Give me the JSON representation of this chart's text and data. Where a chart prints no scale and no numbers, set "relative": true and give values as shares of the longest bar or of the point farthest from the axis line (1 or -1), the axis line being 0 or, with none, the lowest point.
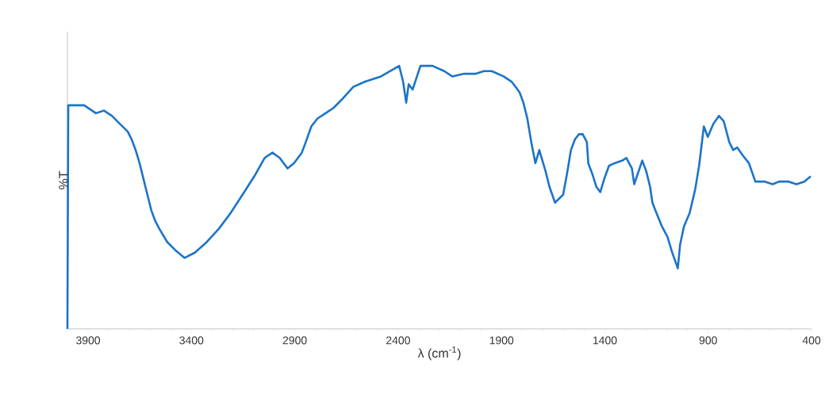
{
  "chart_data": {
    "type": "line",
    "relative": true,
    "xlabel": "λ (cm$^{-1}$)",
    "ylabel": "%T",
    "xlim": [
      4000,
      400
    ],
    "xticks": [
      3900,
      3400,
      2900,
      2400,
      1900,
      1400,
      900,
      400
    ],
    "series": [
      {
        "color": "#1b74c8",
        "x": [
          4000,
          3996,
          3919,
          3862,
          3823,
          3785,
          3747,
          3708,
          3689,
          3670,
          3651,
          3632,
          3613,
          3594,
          3575,
          3555,
          3517,
          3479,
          3433,
          3383,
          3326,
          3268,
          3211,
          3153,
          3096,
          3046,
          3008,
          2973,
          2935,
          2904,
          2866,
          2847,
          2820,
          2790,
          2751,
          2713,
          2675,
          2617,
          2560,
          2483,
          2395,
          2376,
          2361,
          2349,
          2330,
          2292,
          2234,
          2177,
          2138,
          2081,
          2024,
          1985,
          1947,
          1890,
          1851,
          1813,
          1794,
          1775,
          1756,
          1736,
          1717,
          1706,
          1687,
          1668,
          1641,
          1602,
          1583,
          1564,
          1545,
          1526,
          1507,
          1487,
          1480,
          1461,
          1441,
          1422,
          1403,
          1380,
          1353,
          1315,
          1296,
          1269,
          1258,
          1219,
          1200,
          1181,
          1170,
          1150,
          1124,
          1097,
          1074,
          1047,
          1036,
          1017,
          990,
          963,
          944,
          921,
          902,
          875,
          848,
          825,
          798,
          779,
          760,
          733,
          703,
          672,
          626,
          588,
          557,
          511,
          473,
          435,
          404
        ],
        "values": [
          0,
          0.85,
          0.85,
          0.82,
          0.83,
          0.81,
          0.78,
          0.75,
          0.72,
          0.68,
          0.63,
          0.57,
          0.51,
          0.45,
          0.41,
          0.38,
          0.33,
          0.3,
          0.27,
          0.29,
          0.33,
          0.38,
          0.44,
          0.51,
          0.58,
          0.65,
          0.67,
          0.65,
          0.61,
          0.63,
          0.67,
          0.71,
          0.77,
          0.8,
          0.82,
          0.84,
          0.87,
          0.92,
          0.94,
          0.96,
          1.0,
          0.94,
          0.86,
          0.93,
          0.91,
          1.0,
          1.0,
          0.98,
          0.96,
          0.97,
          0.97,
          0.98,
          0.98,
          0.96,
          0.94,
          0.9,
          0.86,
          0.8,
          0.71,
          0.63,
          0.68,
          0.65,
          0.6,
          0.54,
          0.48,
          0.51,
          0.59,
          0.68,
          0.72,
          0.74,
          0.74,
          0.71,
          0.63,
          0.59,
          0.54,
          0.52,
          0.57,
          0.62,
          0.63,
          0.64,
          0.65,
          0.61,
          0.55,
          0.64,
          0.6,
          0.54,
          0.48,
          0.44,
          0.39,
          0.35,
          0.29,
          0.23,
          0.32,
          0.39,
          0.44,
          0.53,
          0.62,
          0.77,
          0.73,
          0.78,
          0.81,
          0.79,
          0.71,
          0.68,
          0.69,
          0.66,
          0.63,
          0.56,
          0.56,
          0.55,
          0.56,
          0.56,
          0.55,
          0.56,
          0.58
        ]
      }
    ]
  }
}
